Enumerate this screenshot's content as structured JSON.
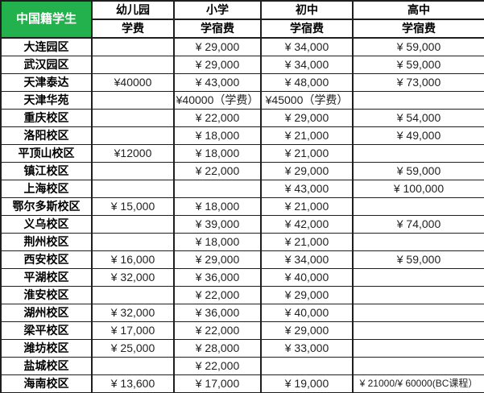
{
  "header": {
    "corner": "中国籍学生",
    "columns": [
      {
        "label": "幼儿园",
        "sub": "学费"
      },
      {
        "label": "小学",
        "sub": "学宿费"
      },
      {
        "label": "初中",
        "sub": "学宿费"
      },
      {
        "label": "高中",
        "sub": "学宿费"
      }
    ]
  },
  "rows": [
    {
      "name": "大连园区",
      "values": [
        "",
        "¥ 29,000",
        "¥ 34,000",
        "¥ 59,000"
      ]
    },
    {
      "name": "武汉园区",
      "values": [
        "",
        "¥ 29,000",
        "¥ 34,000",
        "¥ 59,000"
      ]
    },
    {
      "name": "天津泰达",
      "values": [
        "¥40000",
        "¥ 43,000",
        "¥ 48,000",
        "¥ 73,000"
      ]
    },
    {
      "name": "天津华苑",
      "values": [
        "",
        "¥40000（学费）",
        "¥45000（学费）",
        ""
      ]
    },
    {
      "name": "重庆校区",
      "values": [
        "",
        "¥ 22,000",
        "¥ 29,000",
        "¥ 54,000"
      ]
    },
    {
      "name": "洛阳校区",
      "values": [
        "",
        "¥ 18,000",
        "¥ 21,000",
        "¥ 49,000"
      ]
    },
    {
      "name": "平顶山校区",
      "values": [
        "¥12000",
        "¥ 18,000",
        "¥ 21,000",
        ""
      ]
    },
    {
      "name": "镇江校区",
      "values": [
        "",
        "¥ 22,000",
        "¥ 29,000",
        "¥ 59,000"
      ]
    },
    {
      "name": "上海校区",
      "values": [
        "",
        "",
        "¥ 43,000",
        "¥ 100,000"
      ]
    },
    {
      "name": "鄂尔多斯校区",
      "values": [
        "¥ 15,000",
        "¥ 18,000",
        "¥ 21,000",
        ""
      ]
    },
    {
      "name": "义乌校区",
      "values": [
        "",
        "¥ 39,000",
        "¥ 42,000",
        "¥ 74,000"
      ]
    },
    {
      "name": "荆州校区",
      "values": [
        "",
        "¥ 18,000",
        "¥ 21,000",
        ""
      ]
    },
    {
      "name": "西安校区",
      "values": [
        "¥ 16,000",
        "¥ 29,000",
        "¥ 34,000",
        "¥ 59,000"
      ]
    },
    {
      "name": "平湖校区",
      "values": [
        "¥ 32,000",
        "¥ 36,000",
        "¥ 40,000",
        ""
      ]
    },
    {
      "name": "淮安校区",
      "values": [
        "",
        "¥ 22,000",
        "¥ 29,000",
        ""
      ]
    },
    {
      "name": "湖州校区",
      "values": [
        "¥ 32,000",
        "¥ 36,000",
        "¥ 40,000",
        ""
      ]
    },
    {
      "name": "梁平校区",
      "values": [
        "¥ 17,000",
        "¥ 22,000",
        "¥ 29,000",
        ""
      ]
    },
    {
      "name": "潍坊校区",
      "values": [
        "¥ 25,000",
        "¥ 28,000",
        "¥ 33,000",
        ""
      ]
    },
    {
      "name": "盐城校区",
      "values": [
        "",
        "¥ 22,000",
        "",
        ""
      ]
    },
    {
      "name": "海南校区",
      "values": [
        "¥ 13,600",
        "¥ 17,000",
        "¥ 19,000",
        "¥ 21000/¥ 60000(BC课程）"
      ]
    }
  ],
  "colors": {
    "header_green": "#22b14c",
    "border": "#1e1e1e",
    "header_text": "#ffffff"
  }
}
